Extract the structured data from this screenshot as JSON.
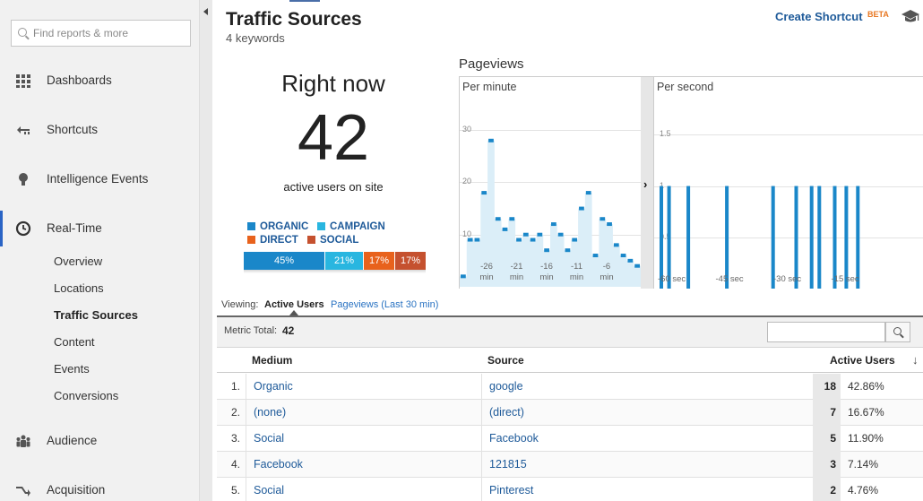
{
  "sidebar": {
    "search_placeholder": "Find reports & more",
    "nav": [
      {
        "label": "Dashboards",
        "icon": "dashboards-grid-icon"
      },
      {
        "label": "Shortcuts",
        "icon": "shortcuts-arrow-icon"
      },
      {
        "label": "Intelligence Events",
        "icon": "lightbulb-icon"
      },
      {
        "label": "Real-Time",
        "icon": "clock-icon"
      },
      {
        "label": "Audience",
        "icon": "people-icon"
      },
      {
        "label": "Acquisition",
        "icon": "acquisition-arrows-icon"
      }
    ],
    "realtime_sub": [
      "Overview",
      "Locations",
      "Traffic Sources",
      "Content",
      "Events",
      "Conversions"
    ]
  },
  "header": {
    "title": "Traffic Sources",
    "subtitle": "4 keywords",
    "create_shortcut": "Create Shortcut",
    "beta": "BETA"
  },
  "rightnow": {
    "heading": "Right now",
    "count": "42",
    "label": "active users on site",
    "legend": [
      {
        "label": "ORGANIC",
        "color": "#1a87c9"
      },
      {
        "label": "CAMPAIGN",
        "color": "#29b6e0"
      },
      {
        "label": "DIRECT",
        "color": "#e8621c"
      },
      {
        "label": "SOCIAL",
        "color": "#c5512f"
      }
    ],
    "segments": [
      {
        "label": "45%",
        "value": 45,
        "color": "#1a87c9"
      },
      {
        "label": "21%",
        "value": 21,
        "color": "#29b6e0"
      },
      {
        "label": "17%",
        "value": 17,
        "color": "#e8621c"
      },
      {
        "label": "17%",
        "value": 17,
        "color": "#c5512f"
      }
    ]
  },
  "pageviews": {
    "title": "Pageviews",
    "per_minute_label": "Per minute",
    "per_second_label": "Per second"
  },
  "chart_data": [
    {
      "type": "area",
      "title": "Per minute",
      "ylim": [
        0,
        35
      ],
      "yticks": [
        10,
        20,
        30
      ],
      "xticks": [
        "-26\nmin",
        "-21\nmin",
        "-16\nmin",
        "-11\nmin",
        "-6\nmin"
      ],
      "values": [
        2,
        9,
        9,
        18,
        28,
        13,
        11,
        13,
        9,
        10,
        9,
        10,
        7,
        12,
        10,
        7,
        9,
        15,
        18,
        6,
        13,
        12,
        8,
        6,
        5,
        4
      ]
    },
    {
      "type": "bar",
      "title": "Per second",
      "ylim": [
        0,
        1.8
      ],
      "yticks": [
        0.5,
        1,
        1.5
      ],
      "xticks": [
        "-60 sec",
        "-45 sec",
        "-30 sec",
        "-15 sec"
      ],
      "values": [
        1,
        1,
        1,
        1,
        1,
        1,
        1,
        1,
        1,
        1,
        1
      ],
      "seconds_ago": [
        60,
        58,
        53,
        43,
        31,
        25,
        21,
        19,
        15,
        12,
        9
      ]
    }
  ],
  "viewing": {
    "label": "Viewing:",
    "active_tab": "Active Users",
    "other_tab": "Pageviews (Last 30 min)"
  },
  "metric": {
    "label": "Metric Total:",
    "value": "42"
  },
  "table": {
    "headers": {
      "medium": "Medium",
      "source": "Source",
      "users": "Active Users"
    },
    "rows": [
      {
        "rank": "1.",
        "medium": "Organic",
        "source": "google",
        "users": "18",
        "pct": "42.86%"
      },
      {
        "rank": "2.",
        "medium": "(none)",
        "source": "(direct)",
        "users": "7",
        "pct": "16.67%"
      },
      {
        "rank": "3.",
        "medium": "Social",
        "source": "Facebook",
        "users": "5",
        "pct": "11.90%"
      },
      {
        "rank": "4.",
        "medium": "Facebook",
        "source": "121815",
        "users": "3",
        "pct": "7.14%"
      },
      {
        "rank": "5.",
        "medium": "Social",
        "source": "Pinterest",
        "users": "2",
        "pct": "4.76%"
      }
    ]
  }
}
